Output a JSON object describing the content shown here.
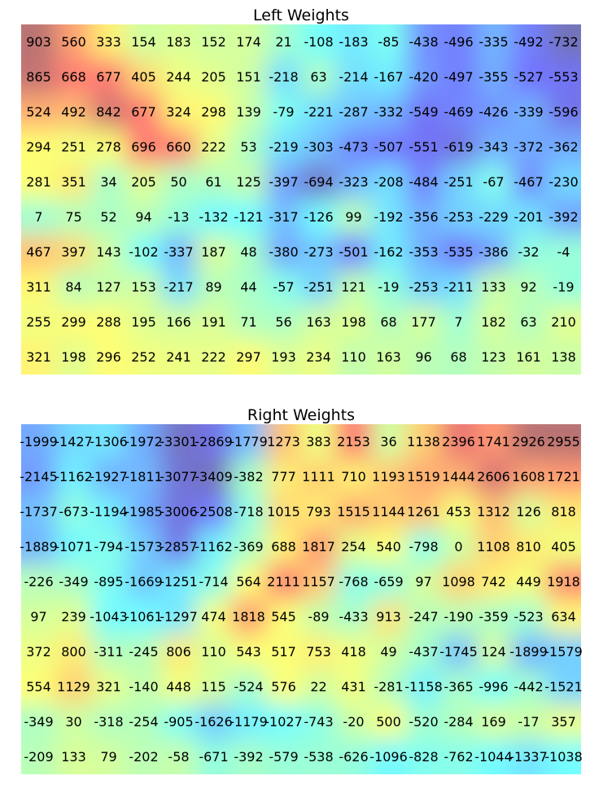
{
  "chart_data": [
    {
      "type": "heatmap",
      "title": "Left Weights",
      "rows": 10,
      "cols": 16,
      "values": [
        [
          903,
          560,
          333,
          154,
          183,
          152,
          174,
          21,
          -108,
          -183,
          -85,
          -438,
          -496,
          -335,
          -492,
          -732
        ],
        [
          865,
          668,
          677,
          405,
          244,
          205,
          151,
          -218,
          63,
          -214,
          -167,
          -420,
          -497,
          -355,
          -527,
          -553
        ],
        [
          524,
          492,
          842,
          677,
          324,
          298,
          139,
          -79,
          -221,
          -287,
          -332,
          -549,
          -469,
          -426,
          -339,
          -596
        ],
        [
          294,
          251,
          278,
          696,
          660,
          222,
          53,
          -219,
          -303,
          -473,
          -507,
          -551,
          -619,
          -343,
          -372,
          -362
        ],
        [
          281,
          351,
          34,
          205,
          50,
          61,
          125,
          -397,
          -694,
          -323,
          -208,
          -484,
          -251,
          -67,
          -467,
          -230
        ],
        [
          7,
          75,
          52,
          94,
          -13,
          -132,
          -121,
          -317,
          -126,
          99,
          -192,
          -356,
          -253,
          -229,
          -201,
          -392
        ],
        [
          467,
          397,
          143,
          -102,
          -337,
          187,
          48,
          -380,
          -273,
          -501,
          -162,
          -353,
          -535,
          -386,
          -32,
          -4
        ],
        [
          311,
          84,
          127,
          153,
          -217,
          89,
          44,
          -57,
          -251,
          121,
          -19,
          -253,
          -211,
          133,
          92,
          -19
        ],
        [
          255,
          299,
          288,
          195,
          166,
          191,
          71,
          56,
          163,
          198,
          68,
          177,
          7,
          182,
          63,
          210
        ],
        [
          321,
          198,
          296,
          252,
          241,
          222,
          297,
          193,
          234,
          110,
          163,
          96,
          68,
          123,
          161,
          138
        ]
      ],
      "colormap": "jet",
      "colorbar": false,
      "axes_visible": false
    },
    {
      "type": "heatmap",
      "title": "Right Weights",
      "rows": 10,
      "cols": 16,
      "values": [
        [
          -1999,
          -1427,
          -1306,
          -1972,
          -3301,
          -2869,
          -1779,
          1273,
          383,
          2153,
          36,
          1138,
          2396,
          1741,
          2926,
          2955
        ],
        [
          -2145,
          -1162,
          -1927,
          -1811,
          -3077,
          -3409,
          -382,
          777,
          1111,
          710,
          1193,
          1519,
          1444,
          2606,
          1608,
          1721
        ],
        [
          -1737,
          -673,
          -1194,
          -1985,
          -3006,
          -2508,
          -718,
          1015,
          793,
          1515,
          1144,
          1261,
          453,
          1312,
          126,
          818
        ],
        [
          -1889,
          -1071,
          -794,
          -1573,
          -2857,
          -1162,
          -369,
          688,
          1817,
          254,
          540,
          -798,
          0,
          1108,
          810,
          405
        ],
        [
          -226,
          -349,
          -895,
          -1669,
          -1251,
          -714,
          564,
          2111,
          1157,
          -768,
          -659,
          97,
          1098,
          742,
          449,
          1918
        ],
        [
          97,
          239,
          -1043,
          -1061,
          -1297,
          474,
          1818,
          545,
          -89,
          -433,
          913,
          -247,
          -190,
          -359,
          -523,
          634
        ],
        [
          372,
          800,
          -311,
          -245,
          806,
          110,
          543,
          517,
          753,
          418,
          49,
          -437,
          -1745,
          124,
          -1899,
          -1579
        ],
        [
          554,
          1129,
          321,
          -140,
          448,
          115,
          -524,
          576,
          22,
          431,
          -281,
          -1158,
          -365,
          -996,
          -442,
          -1521
        ],
        [
          -349,
          30,
          -318,
          -254,
          -905,
          -1626,
          -1179,
          -1027,
          -743,
          -20,
          500,
          -520,
          -284,
          169,
          -17,
          357
        ],
        [
          -209,
          133,
          79,
          -202,
          -58,
          -671,
          -392,
          -579,
          -538,
          -626,
          -1096,
          -828,
          -762,
          -1044,
          -1337,
          -1038
        ]
      ],
      "colormap": "jet",
      "colorbar": false,
      "axes_visible": false
    }
  ]
}
